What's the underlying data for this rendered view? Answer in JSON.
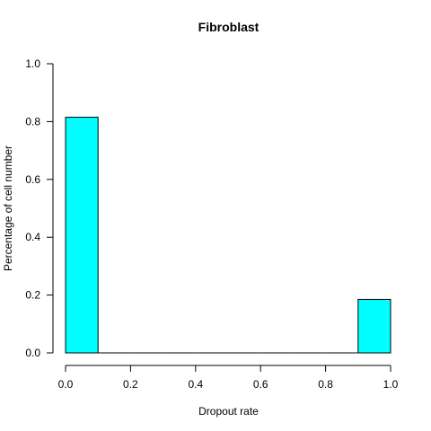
{
  "chart_data": {
    "type": "bar",
    "title": "Fibroblast",
    "xlabel": "Dropout rate",
    "ylabel": "Percentage of cell number",
    "bar_color": "#00FFFF",
    "bins": [
      {
        "x0": 0.0,
        "x1": 0.1,
        "value": 0.815
      },
      {
        "x0": 0.1,
        "x1": 0.2,
        "value": 0.0
      },
      {
        "x0": 0.2,
        "x1": 0.3,
        "value": 0.0
      },
      {
        "x0": 0.3,
        "x1": 0.4,
        "value": 0.0
      },
      {
        "x0": 0.4,
        "x1": 0.5,
        "value": 0.0
      },
      {
        "x0": 0.5,
        "x1": 0.6,
        "value": 0.0
      },
      {
        "x0": 0.6,
        "x1": 0.7,
        "value": 0.0
      },
      {
        "x0": 0.7,
        "x1": 0.8,
        "value": 0.0
      },
      {
        "x0": 0.8,
        "x1": 0.9,
        "value": 0.0
      },
      {
        "x0": 0.9,
        "x1": 1.0,
        "value": 0.185
      }
    ],
    "xlim": [
      0,
      1
    ],
    "ylim": [
      0,
      1
    ],
    "x_ticks": [
      "0.0",
      "0.2",
      "0.4",
      "0.6",
      "0.8",
      "1.0"
    ],
    "y_ticks": [
      "0.0",
      "0.2",
      "0.4",
      "0.6",
      "0.8",
      "1.0"
    ],
    "grid": false
  }
}
